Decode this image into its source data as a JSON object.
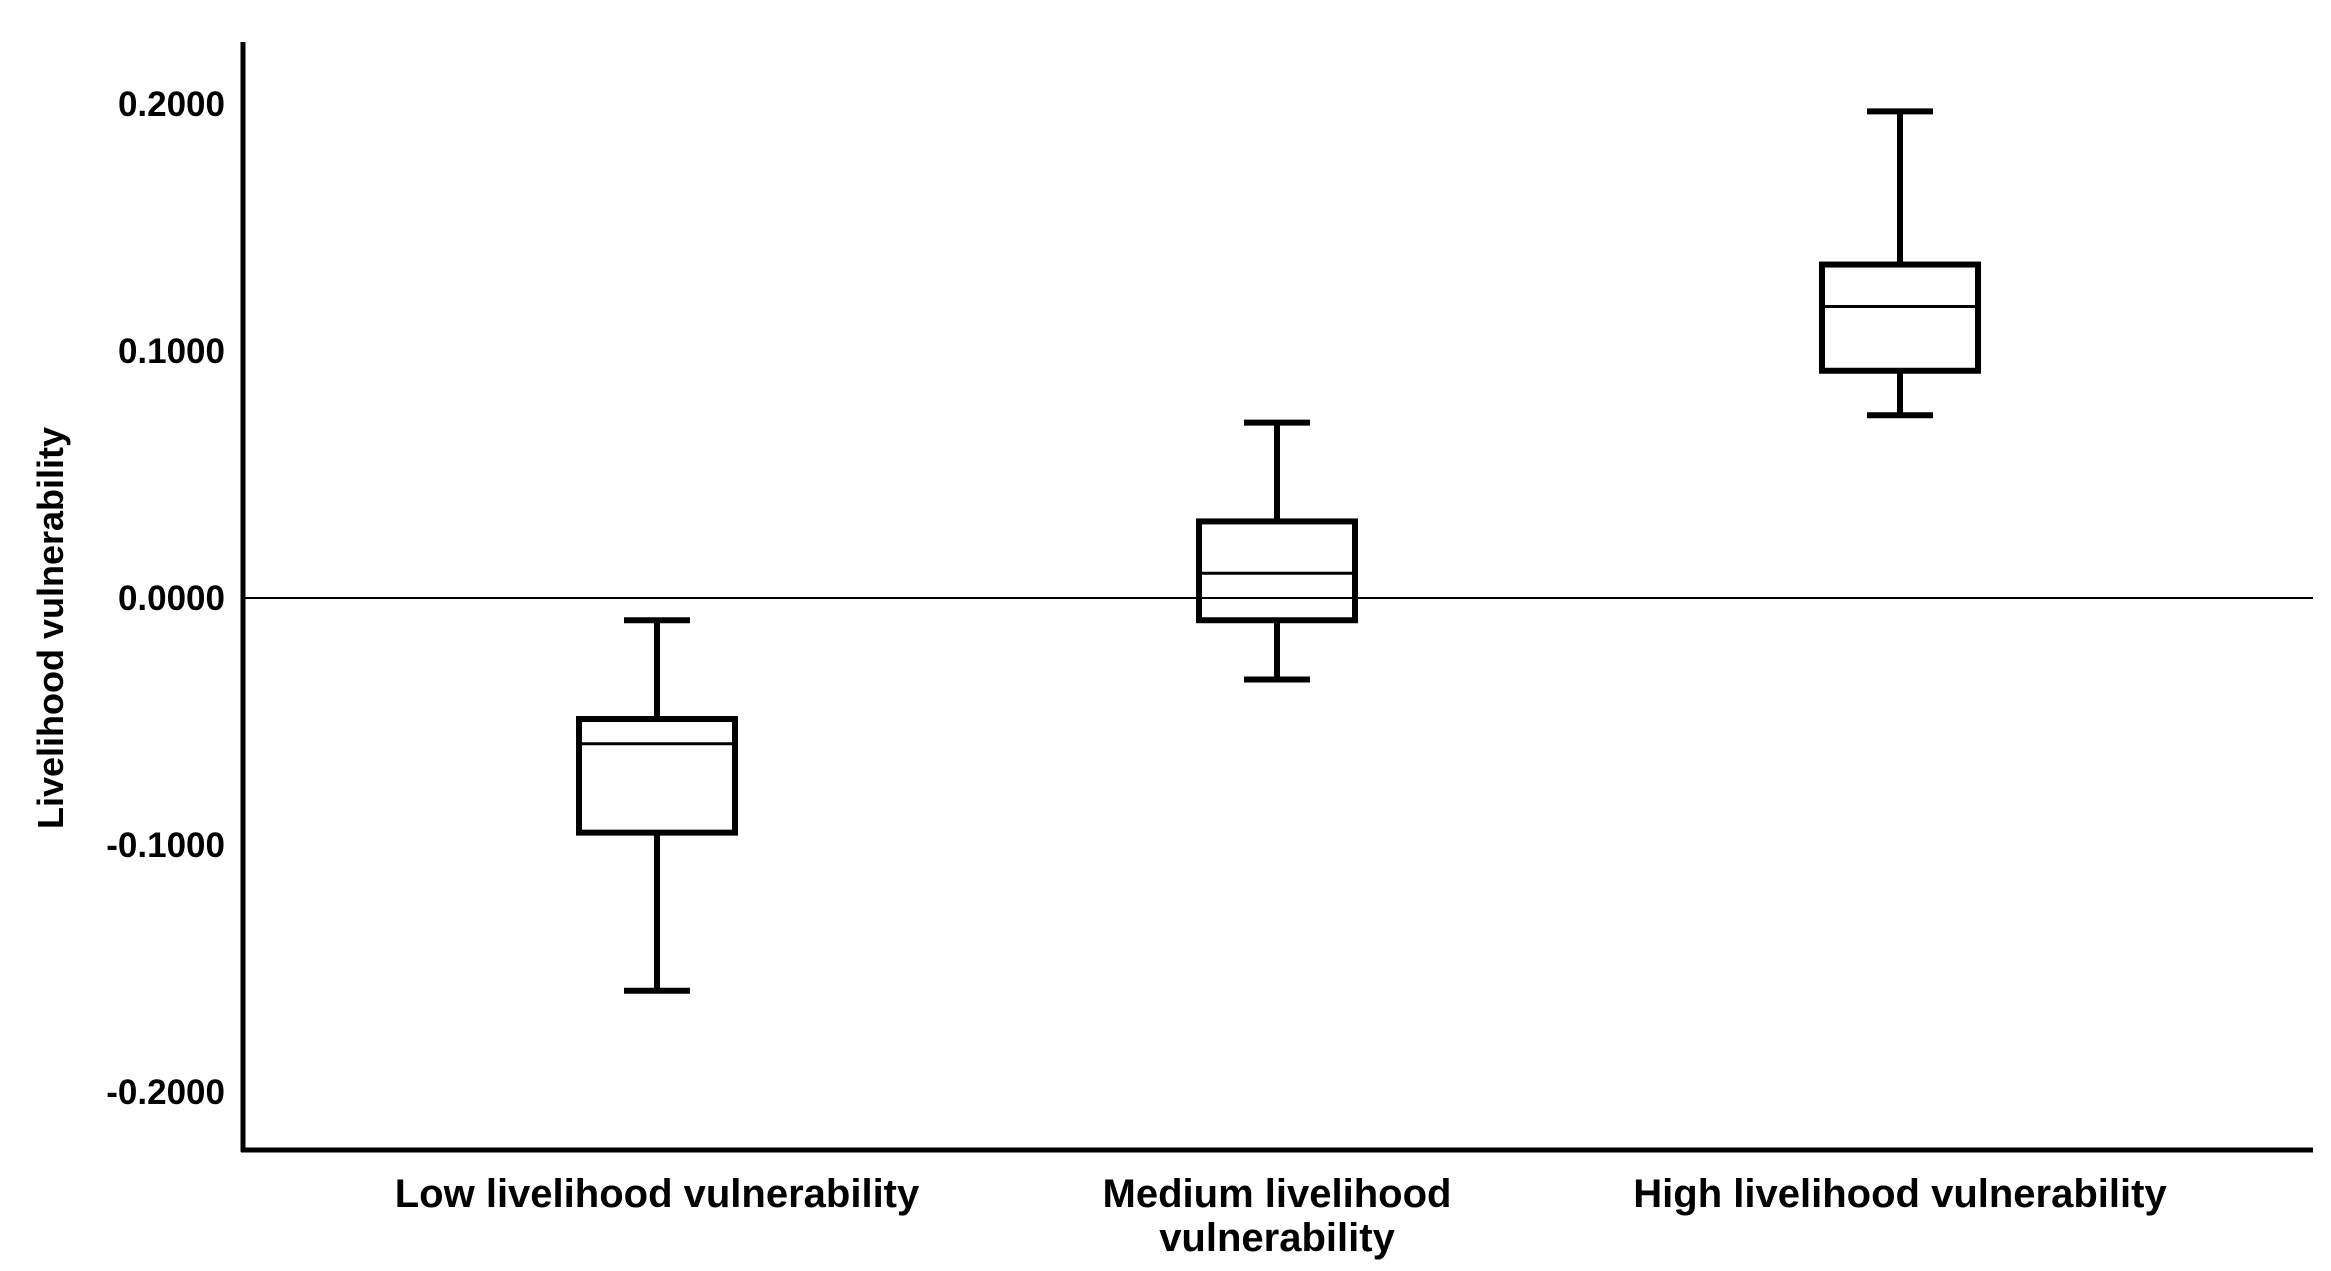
{
  "chart_data": {
    "type": "boxplot",
    "title": "",
    "xlabel": "",
    "ylabel": "Livelihood vulnerability",
    "ylim": [
      -0.22,
      0.225
    ],
    "yticks": [
      -0.2,
      -0.1,
      0.0,
      0.1,
      0.2
    ],
    "ytick_labels": [
      "-0.2000",
      "-0.1000",
      "0.0000",
      "0.1000",
      "0.2000"
    ],
    "reference_line": 0.0,
    "grid": false,
    "legend": "none",
    "line_color": "#000000",
    "background_color": "#ffffff",
    "categories": [
      {
        "label_lines": [
          "Low livelihood vulnerability"
        ],
        "whisker_low": -0.159,
        "q1": -0.095,
        "median": -0.059,
        "q3": -0.049,
        "whisker_high": -0.009
      },
      {
        "label_lines": [
          "Medium livelihood",
          "vulnerability"
        ],
        "whisker_low": -0.033,
        "q1": -0.009,
        "median": 0.01,
        "q3": 0.031,
        "whisker_high": 0.071
      },
      {
        "label_lines": [
          "High livelihood vulnerability"
        ],
        "whisker_low": 0.074,
        "q1": 0.092,
        "median": 0.118,
        "q3": 0.135,
        "whisker_high": 0.197
      }
    ]
  }
}
